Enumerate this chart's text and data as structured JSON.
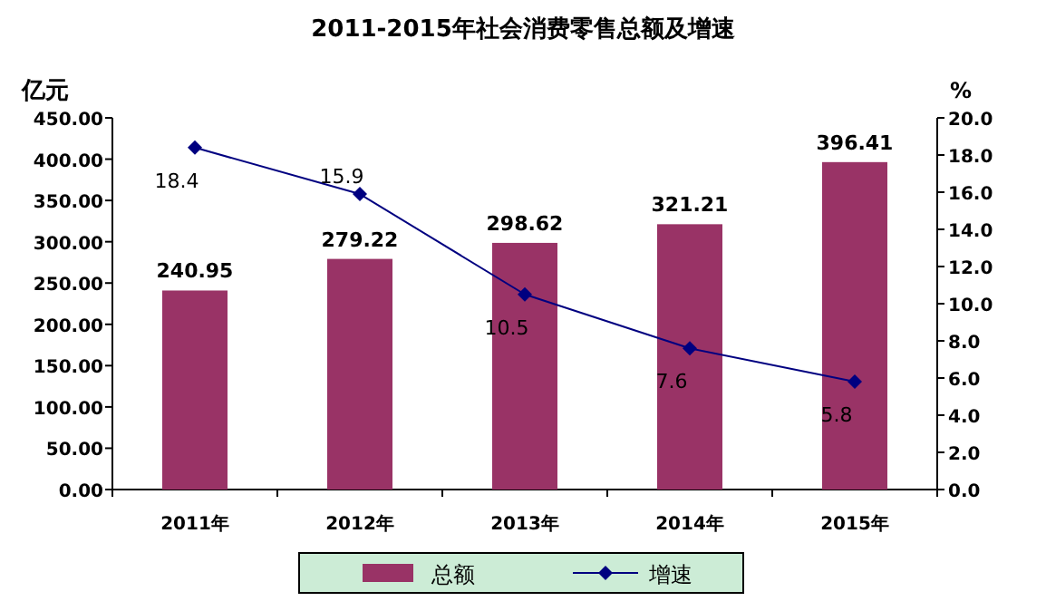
{
  "chart_data": {
    "type": "bar",
    "title": "2011-2015年社会消费零售总额及增速",
    "ylabel": "亿元",
    "y2label": "%",
    "categories": [
      "2011年",
      "2012年",
      "2013年",
      "2014年",
      "2015年"
    ],
    "series": [
      {
        "name": "总额",
        "color": "#993366",
        "values": [
          240.95,
          279.22,
          298.62,
          321.21,
          396.41
        ]
      },
      {
        "name": "增速",
        "type": "line",
        "axis": "y2",
        "color": "#000080",
        "marker": "diamond",
        "values": [
          18.4,
          15.9,
          10.5,
          7.6,
          5.8
        ]
      }
    ],
    "ylim": [
      0,
      450
    ],
    "yticks": [
      {
        "value": 0,
        "label": "0.00"
      },
      {
        "value": 50,
        "label": "50.00"
      },
      {
        "value": 100,
        "label": "100.00"
      },
      {
        "value": 150,
        "label": "150.00"
      },
      {
        "value": 200,
        "label": "200.00"
      },
      {
        "value": 250,
        "label": "250.00"
      },
      {
        "value": 300,
        "label": "300.00"
      },
      {
        "value": 350,
        "label": "350.00"
      },
      {
        "value": 400,
        "label": "400.00"
      },
      {
        "value": 450,
        "label": "450.00"
      }
    ],
    "y2lim": [
      0,
      20
    ],
    "y2ticks": [
      {
        "value": 0,
        "label": "0.0"
      },
      {
        "value": 2,
        "label": "2.0"
      },
      {
        "value": 4,
        "label": "4.0"
      },
      {
        "value": 6,
        "label": "6.0"
      },
      {
        "value": 8,
        "label": "8.0"
      },
      {
        "value": 10,
        "label": "10.0"
      },
      {
        "value": 12,
        "label": "12.0"
      },
      {
        "value": 14,
        "label": "14.0"
      },
      {
        "value": 16,
        "label": "16.0"
      },
      {
        "value": 18,
        "label": "18.0"
      },
      {
        "value": 20,
        "label": "20.0"
      }
    ],
    "data_labels": true,
    "legend": "bottom",
    "grid": false
  }
}
